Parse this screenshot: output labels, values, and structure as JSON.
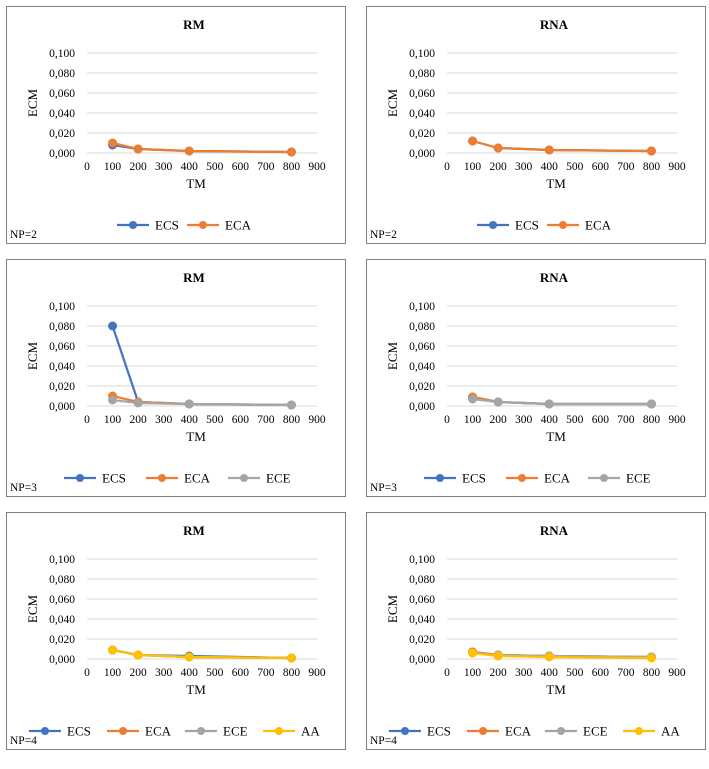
{
  "palette": {
    "ECS": "#4472C4",
    "ECA": "#ED7D31",
    "ECE": "#A5A5A5",
    "AA": "#FFC000"
  },
  "chart_data": [
    {
      "type": "line",
      "title": "RM",
      "xlabel": "TM",
      "ylabel": "ECM",
      "np_label": "NP=2",
      "x": [
        100,
        200,
        400,
        800
      ],
      "xlim": [
        0,
        900
      ],
      "xticks": [
        0,
        100,
        200,
        300,
        400,
        500,
        600,
        700,
        800,
        900
      ],
      "ylim": [
        0,
        0.1
      ],
      "yticks": [
        "0,000",
        "0,020",
        "0,040",
        "0,060",
        "0,080",
        "0,100"
      ],
      "grid": true,
      "legend": "bottom",
      "series": [
        {
          "name": "ECS",
          "values": [
            0.008,
            0.004,
            0.002,
            0.001
          ]
        },
        {
          "name": "ECA",
          "values": [
            0.01,
            0.004,
            0.002,
            0.001
          ]
        }
      ]
    },
    {
      "type": "line",
      "title": "RNA",
      "xlabel": "TM",
      "ylabel": "ECM",
      "np_label": "NP=2",
      "x": [
        100,
        200,
        400,
        800
      ],
      "xlim": [
        0,
        900
      ],
      "xticks": [
        0,
        100,
        200,
        300,
        400,
        500,
        600,
        700,
        800,
        900
      ],
      "ylim": [
        0,
        0.1
      ],
      "yticks": [
        "0,000",
        "0,020",
        "0,040",
        "0,060",
        "0,080",
        "0,100"
      ],
      "grid": true,
      "legend": "bottom",
      "series": [
        {
          "name": "ECS",
          "values": [
            0.012,
            0.005,
            0.003,
            0.002
          ]
        },
        {
          "name": "ECA",
          "values": [
            0.012,
            0.005,
            0.003,
            0.002
          ]
        }
      ]
    },
    {
      "type": "line",
      "title": "RM",
      "xlabel": "TM",
      "ylabel": "ECM",
      "np_label": "NP=3",
      "x": [
        100,
        200,
        400,
        800
      ],
      "xlim": [
        0,
        900
      ],
      "xticks": [
        0,
        100,
        200,
        300,
        400,
        500,
        600,
        700,
        800,
        900
      ],
      "ylim": [
        0,
        0.1
      ],
      "yticks": [
        "0,000",
        "0,020",
        "0,040",
        "0,060",
        "0,080",
        "0,100"
      ],
      "grid": true,
      "legend": "bottom",
      "series": [
        {
          "name": "ECS",
          "values": [
            0.08,
            0.004,
            0.002,
            0.001
          ]
        },
        {
          "name": "ECA",
          "values": [
            0.01,
            0.004,
            0.002,
            0.001
          ]
        },
        {
          "name": "ECE",
          "values": [
            0.006,
            0.003,
            0.002,
            0.001
          ]
        }
      ]
    },
    {
      "type": "line",
      "title": "RNA",
      "xlabel": "TM",
      "ylabel": "ECM",
      "np_label": "NP=3",
      "x": [
        100,
        200,
        400,
        800
      ],
      "xlim": [
        0,
        900
      ],
      "xticks": [
        0,
        100,
        200,
        300,
        400,
        500,
        600,
        700,
        800,
        900
      ],
      "ylim": [
        0,
        0.1
      ],
      "yticks": [
        "0,000",
        "0,020",
        "0,040",
        "0,060",
        "0,080",
        "0,100"
      ],
      "grid": true,
      "legend": "bottom",
      "series": [
        {
          "name": "ECS",
          "values": [
            0.009,
            0.004,
            0.002,
            0.002
          ]
        },
        {
          "name": "ECA",
          "values": [
            0.009,
            0.004,
            0.002,
            0.002
          ]
        },
        {
          "name": "ECE",
          "values": [
            0.007,
            0.004,
            0.002,
            0.002
          ]
        }
      ]
    },
    {
      "type": "line",
      "title": "RM",
      "xlabel": "TM",
      "ylabel": "ECM",
      "np_label": "NP=4",
      "x": [
        100,
        200,
        400,
        800
      ],
      "xlim": [
        0,
        900
      ],
      "xticks": [
        0,
        100,
        200,
        300,
        400,
        500,
        600,
        700,
        800,
        900
      ],
      "ylim": [
        0,
        0.1
      ],
      "yticks": [
        "0,000",
        "0,020",
        "0,040",
        "0,060",
        "0,080",
        "0,100"
      ],
      "grid": true,
      "legend": "bottom",
      "series": [
        {
          "name": "ECS",
          "values": [
            0.009,
            0.004,
            0.003,
            0.001
          ]
        },
        {
          "name": "ECA",
          "values": [
            0.009,
            0.004,
            0.002,
            0.001
          ]
        },
        {
          "name": "ECE",
          "values": [
            0.009,
            0.004,
            0.002,
            0.001
          ]
        },
        {
          "name": "AA",
          "values": [
            0.009,
            0.004,
            0.002,
            0.001
          ]
        }
      ]
    },
    {
      "type": "line",
      "title": "RNA",
      "xlabel": "TM",
      "ylabel": "ECM",
      "np_label": "NP=4",
      "x": [
        100,
        200,
        400,
        800
      ],
      "xlim": [
        0,
        900
      ],
      "xticks": [
        0,
        100,
        200,
        300,
        400,
        500,
        600,
        700,
        800,
        900
      ],
      "ylim": [
        0,
        0.1
      ],
      "yticks": [
        "0,000",
        "0,020",
        "0,040",
        "0,060",
        "0,080",
        "0,100"
      ],
      "grid": true,
      "legend": "bottom",
      "series": [
        {
          "name": "ECS",
          "values": [
            0.007,
            0.004,
            0.003,
            0.002
          ]
        },
        {
          "name": "ECA",
          "values": [
            0.007,
            0.004,
            0.003,
            0.002
          ]
        },
        {
          "name": "ECE",
          "values": [
            0.006,
            0.004,
            0.003,
            0.002
          ]
        },
        {
          "name": "AA",
          "values": [
            0.006,
            0.003,
            0.002,
            0.001
          ]
        }
      ]
    }
  ]
}
